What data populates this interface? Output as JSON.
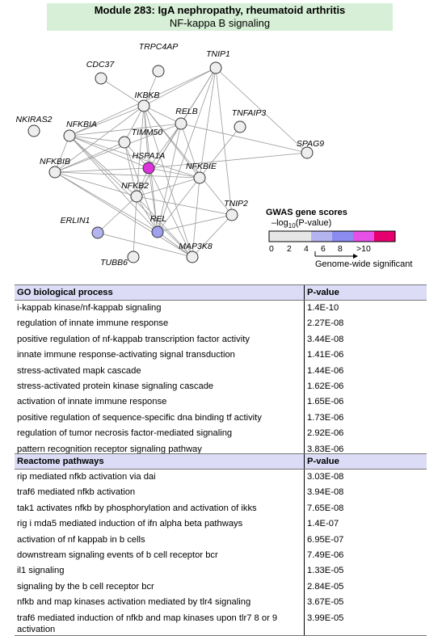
{
  "header": {
    "title": "Module 283: IgA nephropathy, rheumatoid arthritis",
    "subtitle": "NF-kappa B signaling"
  },
  "network": {
    "nodes": [
      {
        "id": "TRPC4AP",
        "color": "#eeeeee"
      },
      {
        "id": "TNIP1",
        "color": "#eeeeee"
      },
      {
        "id": "CDC37",
        "color": "#eeeeee"
      },
      {
        "id": "IKBKB",
        "color": "#eeeeee"
      },
      {
        "id": "RELB",
        "color": "#eeeeee"
      },
      {
        "id": "TNFAIP3",
        "color": "#eeeeee"
      },
      {
        "id": "NKIRAS2",
        "color": "#eeeeee"
      },
      {
        "id": "NFKBIA",
        "color": "#eeeeee"
      },
      {
        "id": "TIMM50",
        "color": "#eeeeee"
      },
      {
        "id": "SPAG9",
        "color": "#eeeeee"
      },
      {
        "id": "HSPA1A",
        "color": "#dd33dd"
      },
      {
        "id": "NFKBIB",
        "color": "#eeeeee"
      },
      {
        "id": "NFKBIE",
        "color": "#eeeeee"
      },
      {
        "id": "NFKB2",
        "color": "#eeeeee"
      },
      {
        "id": "TNIP2",
        "color": "#eeeeee"
      },
      {
        "id": "ERLIN1",
        "color": "#b4b4f0"
      },
      {
        "id": "REL",
        "color": "#a0a0ee"
      },
      {
        "id": "TUBB6",
        "color": "#eeeeee"
      },
      {
        "id": "MAP3K8",
        "color": "#eeeeee"
      }
    ],
    "edges": [
      [
        "TRPC4AP",
        "IKBKB"
      ],
      [
        "TNIP1",
        "IKBKB"
      ],
      [
        "TNIP1",
        "NFKBIA"
      ],
      [
        "TNIP1",
        "NFKBIE"
      ],
      [
        "TNIP1",
        "NFKB2"
      ],
      [
        "TNIP1",
        "REL"
      ],
      [
        "TNIP1",
        "SPAG9"
      ],
      [
        "TNIP1",
        "TNIP2"
      ],
      [
        "TNIP1",
        "RELB"
      ],
      [
        "CDC37",
        "IKBKB"
      ],
      [
        "IKBKB",
        "NFKBIA"
      ],
      [
        "IKBKB",
        "NFKBIB"
      ],
      [
        "IKBKB",
        "NFKBIE"
      ],
      [
        "IKBKB",
        "RELB"
      ],
      [
        "IKBKB",
        "HSPA1A"
      ],
      [
        "IKBKB",
        "NFKB2"
      ],
      [
        "IKBKB",
        "REL"
      ],
      [
        "IKBKB",
        "TIMM50"
      ],
      [
        "IKBKB",
        "MAP3K8"
      ],
      [
        "IKBKB",
        "TNIP2"
      ],
      [
        "RELB",
        "NFKBIA"
      ],
      [
        "RELB",
        "NFKBIB"
      ],
      [
        "RELB",
        "NFKB2"
      ],
      [
        "RELB",
        "NFKBIE"
      ],
      [
        "RELB",
        "REL"
      ],
      [
        "RELB",
        "SPAG9"
      ],
      [
        "RELB",
        "HSPA1A"
      ],
      [
        "TNFAIP3",
        "NFKBIE"
      ],
      [
        "NFKBIA",
        "NFKBIB"
      ],
      [
        "NFKBIA",
        "TIMM50"
      ],
      [
        "NFKBIA",
        "HSPA1A"
      ],
      [
        "NFKBIA",
        "NFKBIE"
      ],
      [
        "NFKBIA",
        "NFKB2"
      ],
      [
        "NFKBIA",
        "REL"
      ],
      [
        "NFKBIA",
        "MAP3K8"
      ],
      [
        "TIMM50",
        "HSPA1A"
      ],
      [
        "TIMM50",
        "NFKBIB"
      ],
      [
        "TIMM50",
        "NFKB2"
      ],
      [
        "TIMM50",
        "REL"
      ],
      [
        "HSPA1A",
        "NFKBIB"
      ],
      [
        "HSPA1A",
        "NFKBIE"
      ],
      [
        "HSPA1A",
        "NFKB2"
      ],
      [
        "HSPA1A",
        "REL"
      ],
      [
        "HSPA1A",
        "MAP3K8"
      ],
      [
        "HSPA1A",
        "SPAG9"
      ],
      [
        "NFKBIB",
        "NFKBIE"
      ],
      [
        "NFKBIB",
        "NFKB2"
      ],
      [
        "NFKBIB",
        "REL"
      ],
      [
        "NFKBIB",
        "MAP3K8"
      ],
      [
        "NFKBIE",
        "NFKB2"
      ],
      [
        "NFKBIE",
        "REL"
      ],
      [
        "NFKBIE",
        "MAP3K8"
      ],
      [
        "NFKB2",
        "REL"
      ],
      [
        "NFKB2",
        "TNIP2"
      ],
      [
        "NFKB2",
        "MAP3K8"
      ],
      [
        "NFKB2",
        "ERLIN1"
      ],
      [
        "NFKB2",
        "TUBB6"
      ],
      [
        "REL",
        "MAP3K8"
      ],
      [
        "REL",
        "TNIP2"
      ],
      [
        "TNIP2",
        "MAP3K8"
      ],
      [
        "ERLIN1",
        "MAP3K8"
      ]
    ]
  },
  "legend": {
    "title": "GWAS gene scores",
    "subtitle_prefix": "–log",
    "subtitle_sub": "10",
    "subtitle_suffix": "(P-value)",
    "colors": [
      "#e6e6e6",
      "#e6e6e6",
      "#b4b4f0",
      "#8c8cf0",
      "#e650e6",
      "#e6006e"
    ],
    "ticks": [
      "0",
      "2",
      "4",
      "6",
      "8",
      ">10"
    ],
    "note": "Genome-wide significant"
  },
  "go_table": {
    "header": "GO biological process",
    "pvalue_header": "P-value",
    "rows": [
      {
        "term": "i-kappab kinase/nf-kappab signaling",
        "p": "1.4E-10"
      },
      {
        "term": "regulation of innate immune response",
        "p": "2.27E-08"
      },
      {
        "term": "positive regulation of nf-kappab transcription factor activity",
        "p": "3.44E-08"
      },
      {
        "term": "innate immune response-activating signal transduction",
        "p": "1.41E-06"
      },
      {
        "term": "stress-activated mapk cascade",
        "p": "1.44E-06"
      },
      {
        "term": "stress-activated protein kinase signaling cascade",
        "p": "1.62E-06"
      },
      {
        "term": "activation of innate immune response",
        "p": "1.65E-06"
      },
      {
        "term": "positive regulation of sequence-specific dna binding tf activity",
        "p": "1.73E-06"
      },
      {
        "term": "regulation of tumor necrosis factor-mediated signaling",
        "p": "2.92E-06"
      },
      {
        "term": "pattern recognition receptor signaling pathway",
        "p": "3.83E-06"
      }
    ]
  },
  "reactome_table": {
    "header": "Reactome pathways",
    "pvalue_header": "P-value",
    "rows": [
      {
        "term": "rip mediated nfkb activation via dai",
        "p": "3.03E-08"
      },
      {
        "term": "traf6 mediated nfkb activation",
        "p": "3.94E-08"
      },
      {
        "term": "tak1 activates nfkb by phosphorylation and activation of ikks",
        "p": "7.65E-08"
      },
      {
        "term": "rig i mda5 mediated induction of ifn alpha beta pathways",
        "p": "1.4E-07"
      },
      {
        "term": "activation of nf kappab in b cells",
        "p": "6.95E-07"
      },
      {
        "term": "downstream signaling events of b cell receptor bcr",
        "p": "7.49E-06"
      },
      {
        "term": "il1 signaling",
        "p": "1.33E-05"
      },
      {
        "term": "signaling by the b cell receptor bcr",
        "p": "2.84E-05"
      },
      {
        "term": "nfkb and map kinases activation mediated by tlr4 signaling",
        "p": "3.67E-05"
      },
      {
        "term": "traf6 mediated induction of nfkb and map kinases upon tlr7 8 or 9 activation",
        "p": "3.99E-05"
      }
    ]
  }
}
